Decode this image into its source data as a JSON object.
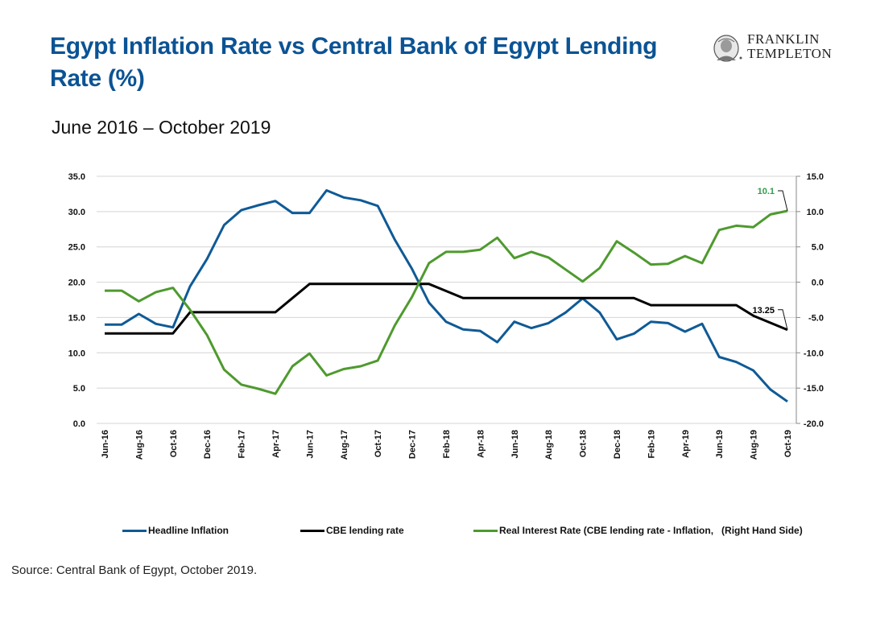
{
  "header": {
    "title": "Egypt Inflation Rate vs Central Bank of Egypt Lending Rate (%)",
    "subtitle": "June 2016 – October 2019"
  },
  "logo": {
    "line1": "FRANKLIN",
    "line2": "TEMPLETON"
  },
  "footer": {
    "source": "Source: Central Bank of Egypt, October 2019."
  },
  "legend": {
    "items": [
      {
        "label": "Headline Inflation",
        "color": "#0f5a96"
      },
      {
        "label": "CBE lending rate",
        "color": "#000000"
      },
      {
        "label": "Real Interest Rate (CBE lending rate - Inflation,",
        "color": "#4e9a2e"
      }
    ],
    "rhs_note": "(Right Hand Side)"
  },
  "chart_data": {
    "type": "line",
    "title": "Egypt Inflation Rate vs Central Bank of Egypt Lending Rate (%)",
    "subtitle": "June 2016 – October 2019",
    "x": [
      "Jun-16",
      "Jul-16",
      "Aug-16",
      "Sep-16",
      "Oct-16",
      "Nov-16",
      "Dec-16",
      "Jan-17",
      "Feb-17",
      "Mar-17",
      "Apr-17",
      "May-17",
      "Jun-17",
      "Jul-17",
      "Aug-17",
      "Sep-17",
      "Oct-17",
      "Nov-17",
      "Dec-17",
      "Jan-18",
      "Feb-18",
      "Mar-18",
      "Apr-18",
      "May-18",
      "Jun-18",
      "Jul-18",
      "Aug-18",
      "Sep-18",
      "Oct-18",
      "Nov-18",
      "Dec-18",
      "Jan-19",
      "Feb-19",
      "Mar-19",
      "Apr-19",
      "May-19",
      "Jun-19",
      "Jul-19",
      "Aug-19",
      "Sep-19",
      "Oct-19"
    ],
    "x_tick_labels": [
      "Jun-16",
      "Aug-16",
      "Oct-16",
      "Dec-16",
      "Feb-17",
      "Apr-17",
      "Jun-17",
      "Aug-17",
      "Oct-17",
      "Dec-17",
      "Feb-18",
      "Apr-18",
      "Jun-18",
      "Aug-18",
      "Oct-18",
      "Dec-18",
      "Feb-19",
      "Apr-19",
      "Jun-19",
      "Aug-19",
      "Oct-19"
    ],
    "y_left": {
      "min": 0,
      "max": 35,
      "step": 5,
      "ticks": [
        "0.0",
        "5.0",
        "10.0",
        "15.0",
        "20.0",
        "25.0",
        "30.0",
        "35.0"
      ]
    },
    "y_right": {
      "min": -20,
      "max": 15,
      "step": 5,
      "ticks": [
        "-20.0",
        "-15.0",
        "-10.0",
        "-5.0",
        "0.0",
        "5.0",
        "10.0",
        "15.0"
      ]
    },
    "grid": true,
    "legend_position": "bottom",
    "series": [
      {
        "name": "Headline Inflation",
        "axis": "left",
        "color": "#0f5a96",
        "values": [
          14.0,
          14.0,
          15.5,
          14.1,
          13.6,
          19.4,
          23.3,
          28.1,
          30.2,
          30.9,
          31.5,
          29.8,
          29.8,
          33.0,
          32.0,
          31.6,
          30.8,
          26.0,
          21.9,
          17.1,
          14.4,
          13.3,
          13.1,
          11.5,
          14.4,
          13.5,
          14.2,
          15.7,
          17.7,
          15.7,
          11.9,
          12.7,
          14.4,
          14.2,
          13.0,
          14.1,
          9.4,
          8.7,
          7.5,
          4.8,
          3.1
        ]
      },
      {
        "name": "CBE lending rate",
        "axis": "left",
        "color": "#000000",
        "values": [
          12.75,
          12.75,
          12.75,
          12.75,
          12.75,
          15.75,
          15.75,
          15.75,
          15.75,
          15.75,
          15.75,
          17.75,
          19.75,
          19.75,
          19.75,
          19.75,
          19.75,
          19.75,
          19.75,
          19.75,
          18.75,
          17.75,
          17.75,
          17.75,
          17.75,
          17.75,
          17.75,
          17.75,
          17.75,
          17.75,
          17.75,
          17.75,
          16.75,
          16.75,
          16.75,
          16.75,
          16.75,
          16.75,
          15.25,
          14.25,
          13.25
        ]
      },
      {
        "name": "Real Interest Rate (CBE lending rate - Inflation, Right Hand Side)",
        "axis": "right",
        "color": "#4e9a2e",
        "values": [
          -1.2,
          -1.2,
          -2.7,
          -1.4,
          -0.8,
          -3.9,
          -7.5,
          -12.4,
          -14.5,
          -15.1,
          -15.8,
          -11.9,
          -10.1,
          -13.2,
          -12.3,
          -11.9,
          -11.1,
          -6.1,
          -2.1,
          2.7,
          4.3,
          4.3,
          4.6,
          6.3,
          3.4,
          4.3,
          3.5,
          1.8,
          0.1,
          2.0,
          5.8,
          4.2,
          2.5,
          2.6,
          3.7,
          2.7,
          7.4,
          8.0,
          7.8,
          9.6,
          10.1
        ]
      }
    ],
    "annotations": [
      {
        "series": "Real Interest Rate (CBE lending rate - Inflation, Right Hand Side)",
        "x": "Oct-19",
        "text": "10.1",
        "color": "#2e9e4a"
      },
      {
        "series": "CBE lending rate",
        "x": "Oct-19",
        "text": "13.25",
        "color": "#000000"
      }
    ]
  }
}
